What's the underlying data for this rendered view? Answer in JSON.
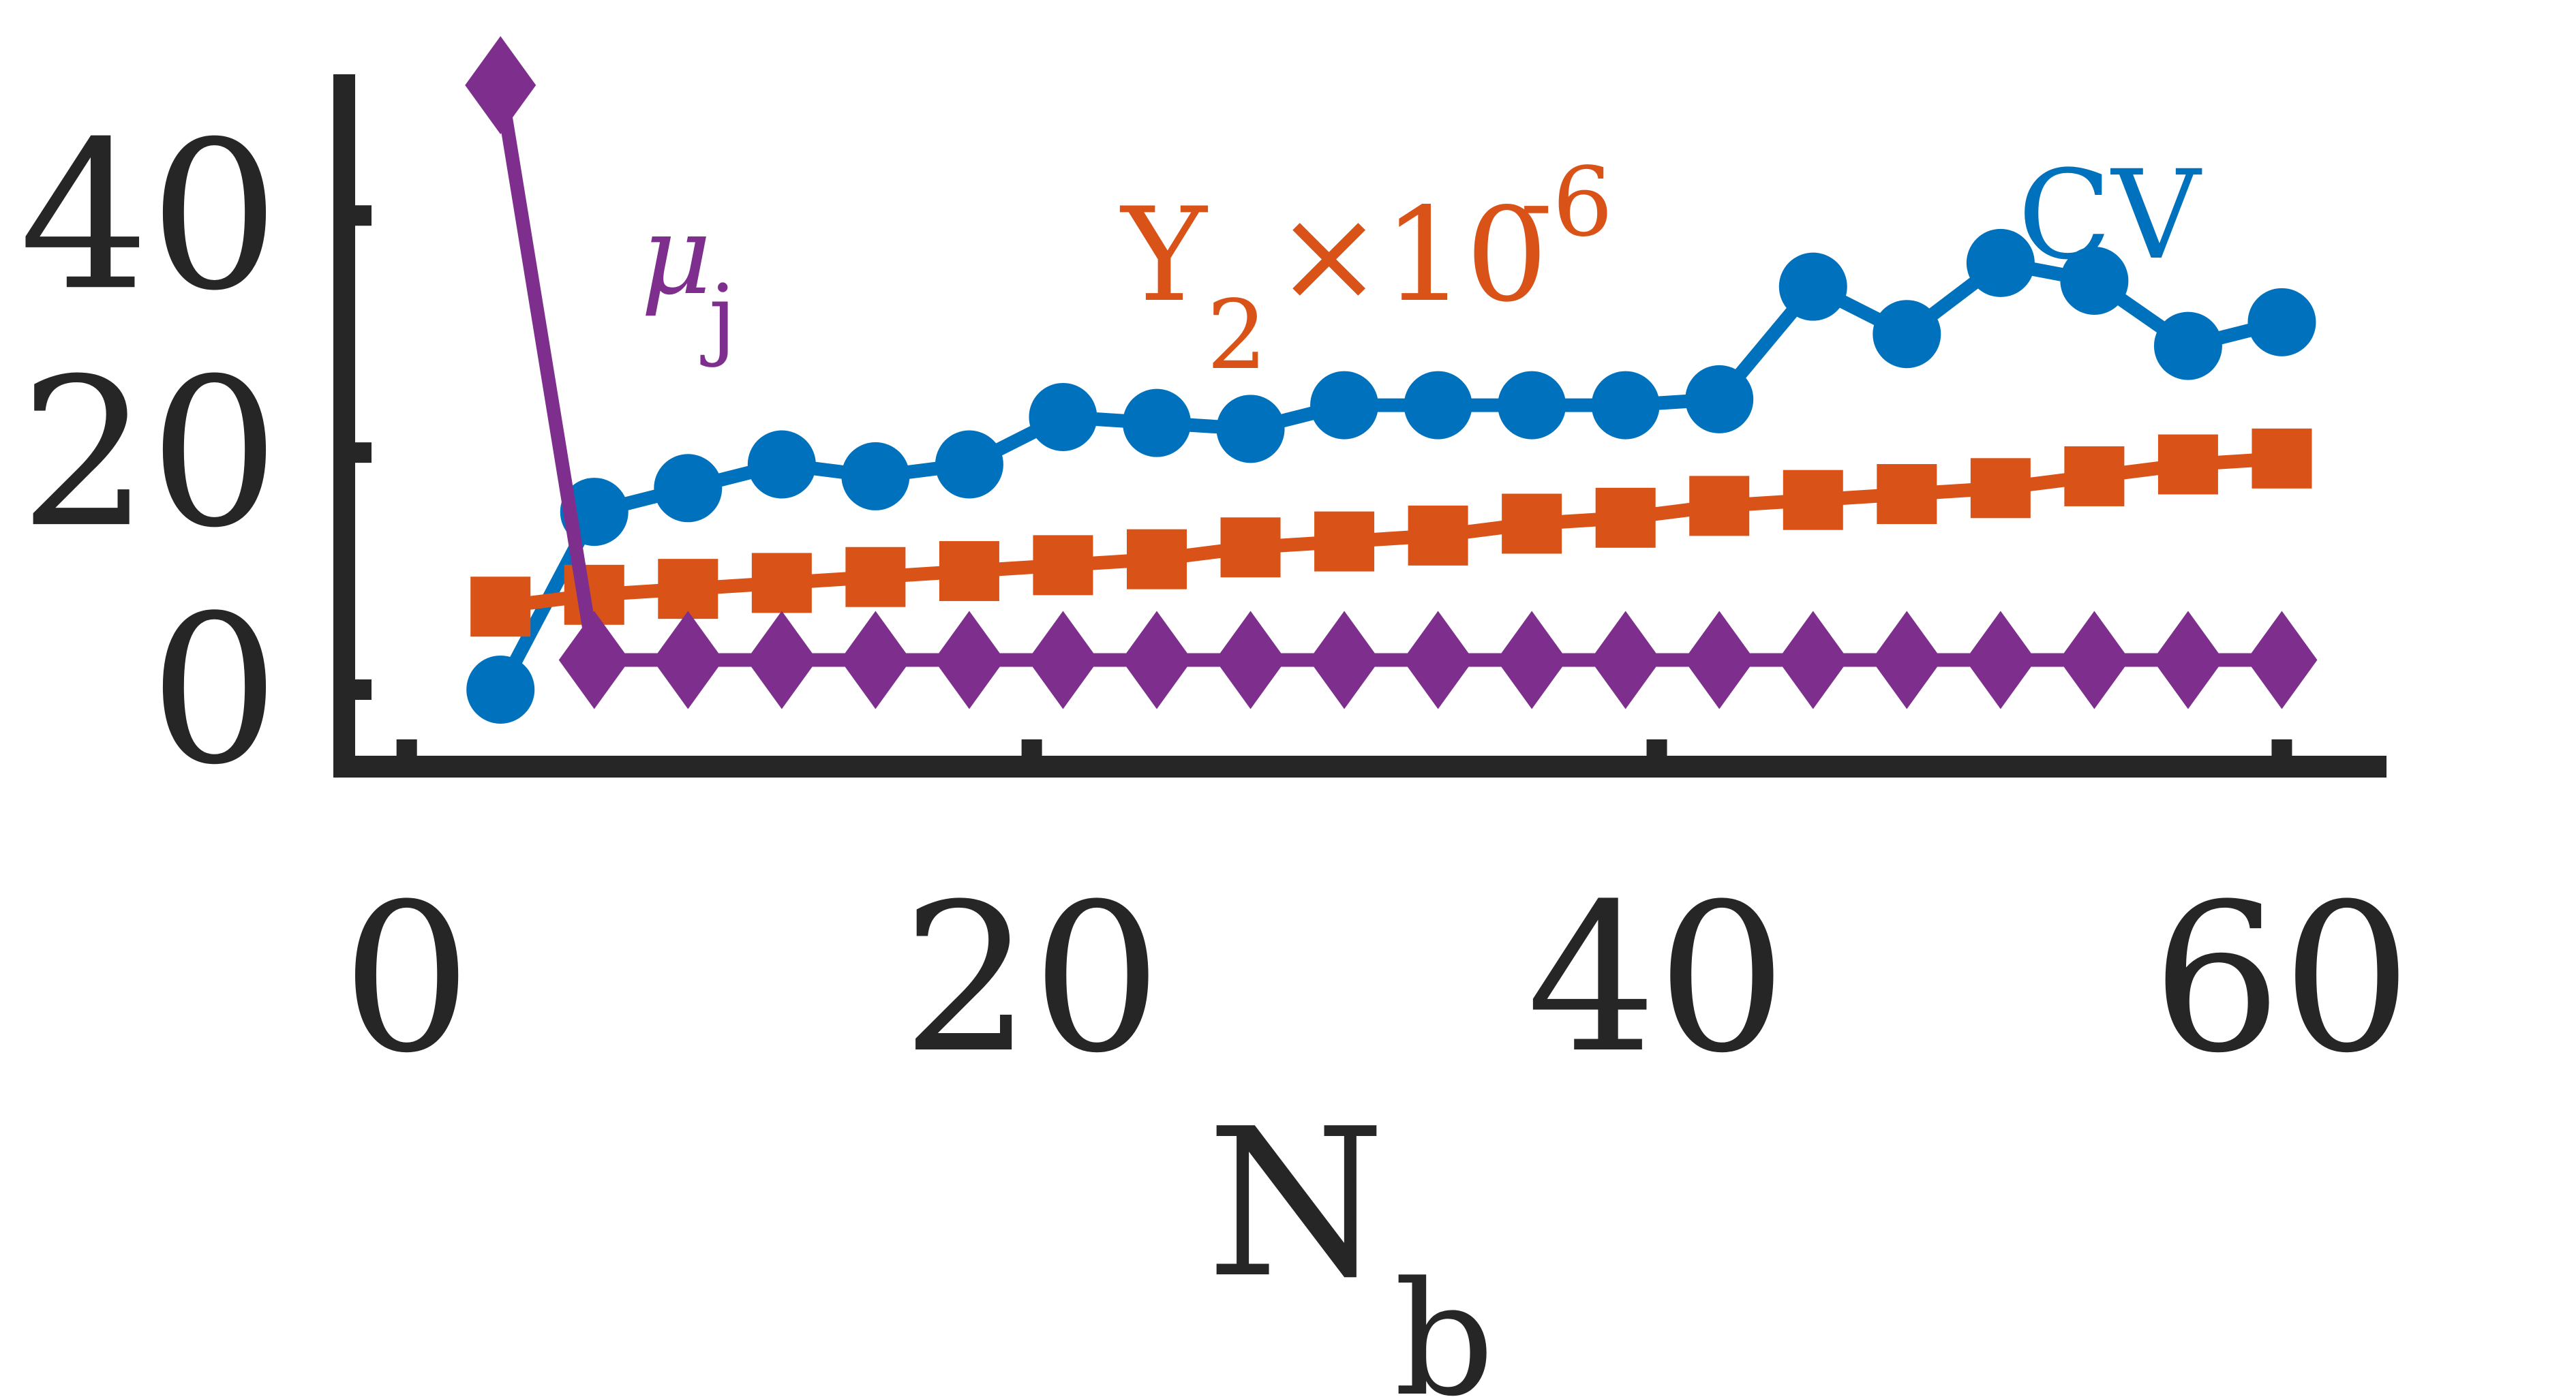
{
  "chart_data": {
    "type": "line",
    "xlabel": "N",
    "xlabel_sub": "b",
    "ylabel": "",
    "xlim": [
      -2,
      63
    ],
    "ylim": [
      -6.5,
      51
    ],
    "xticks": [
      0,
      20,
      40,
      60
    ],
    "yticks": [
      0,
      20,
      40
    ],
    "grid": false,
    "legend": "none",
    "series": [
      {
        "name": "CV",
        "label_parts": [
          "CV"
        ],
        "color": "#0072BD",
        "marker": "circle",
        "x": [
          3,
          6,
          9,
          12,
          15,
          18,
          21,
          24,
          27,
          30,
          33,
          36,
          39,
          42,
          45,
          48,
          51,
          54,
          57,
          60
        ],
        "values": [
          0,
          15,
          17,
          19,
          18,
          19,
          23,
          22.5,
          22,
          24,
          24,
          24,
          24,
          24.5,
          34,
          30,
          36,
          34.5,
          29,
          31
        ]
      },
      {
        "name": "Y_2 × 10^-6",
        "label_parts": [
          "Y",
          "2",
          "×10",
          "-6"
        ],
        "color": "#D95319",
        "marker": "square",
        "x": [
          3,
          6,
          9,
          12,
          15,
          18,
          21,
          24,
          27,
          30,
          33,
          36,
          39,
          42,
          45,
          48,
          51,
          54,
          57,
          60
        ],
        "values": [
          7,
          8,
          8.5,
          9,
          9.5,
          10,
          10.5,
          11,
          12,
          12.5,
          13,
          14,
          14.5,
          15.5,
          16,
          16.5,
          17,
          18,
          19,
          19.5
        ]
      },
      {
        "name": "μ_j",
        "label_parts": [
          "μ",
          "j"
        ],
        "color": "#7E2F8E",
        "marker": "diamond",
        "x": [
          3,
          6,
          9,
          12,
          15,
          18,
          21,
          24,
          27,
          30,
          33,
          36,
          39,
          42,
          45,
          48,
          51,
          54,
          57,
          60
        ],
        "values": [
          51,
          2.5,
          2.5,
          2.5,
          2.5,
          2.5,
          2.5,
          2.5,
          2.5,
          2.5,
          2.5,
          2.5,
          2.5,
          2.5,
          2.5,
          2.5,
          2.5,
          2.5,
          2.5,
          2.5
        ]
      }
    ]
  }
}
